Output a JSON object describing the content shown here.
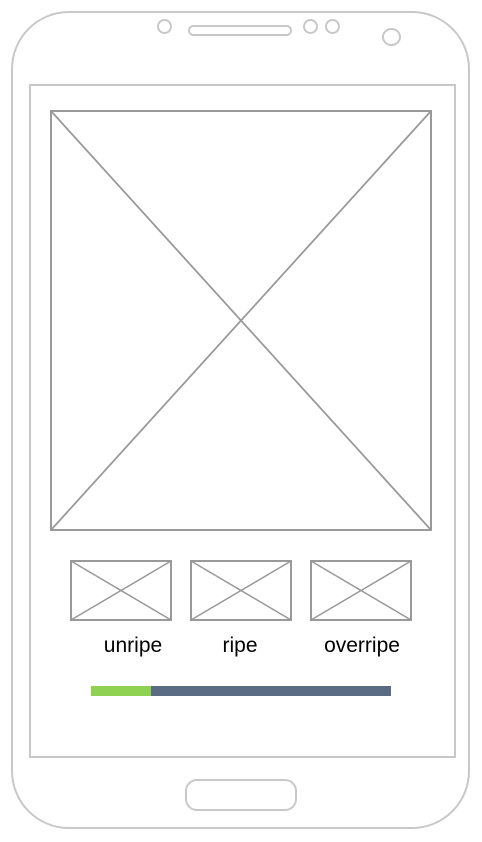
{
  "colors": {
    "frame": "#c8c8c8",
    "placeholder_stroke": "#999999",
    "progress_fill": "#8fd150",
    "progress_track": "#5a6b84",
    "text": "#000000"
  },
  "main": {
    "hero_image": {
      "icon": "image-placeholder-icon"
    },
    "thumbnails": [
      {
        "label": "unripe",
        "icon": "image-placeholder-icon"
      },
      {
        "label": "ripe",
        "icon": "image-placeholder-icon"
      },
      {
        "label": "overripe",
        "icon": "image-placeholder-icon"
      }
    ],
    "ripeness_progress": 0.2
  }
}
